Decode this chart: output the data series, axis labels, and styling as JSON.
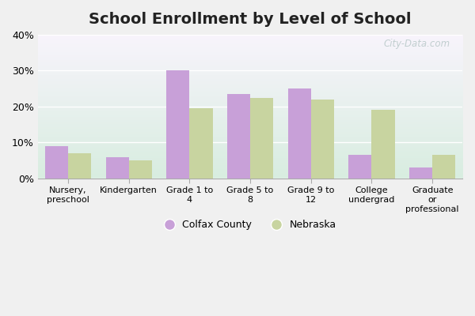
{
  "title": "School Enrollment by Level of School",
  "categories": [
    "Nursery,\npreschool",
    "Kindergarten",
    "Grade 1 to\n4",
    "Grade 5 to\n8",
    "Grade 9 to\n12",
    "College\nundergrad",
    "Graduate\nor\nprofessional"
  ],
  "colfax_values": [
    9.0,
    6.0,
    30.0,
    23.5,
    25.0,
    6.5,
    3.0
  ],
  "nebraska_values": [
    7.0,
    5.0,
    19.5,
    22.5,
    22.0,
    19.0,
    6.5
  ],
  "colfax_color": "#c8a0d8",
  "nebraska_color": "#c8d4a0",
  "ylim": [
    0,
    40
  ],
  "yticks": [
    0,
    10,
    20,
    30,
    40
  ],
  "ytick_labels": [
    "0%",
    "10%",
    "20%",
    "30%",
    "40%"
  ],
  "legend_labels": [
    "Colfax County",
    "Nebraska"
  ],
  "fig_bg_color": "#f0f0f0",
  "plot_bg_top": "#d8ede0",
  "plot_bg_bottom": "#f5f0f8",
  "watermark": "City-Data.com",
  "bar_width": 0.38,
  "grid_color": "#ffffff",
  "title_fontsize": 14,
  "tick_label_fontsize": 8
}
